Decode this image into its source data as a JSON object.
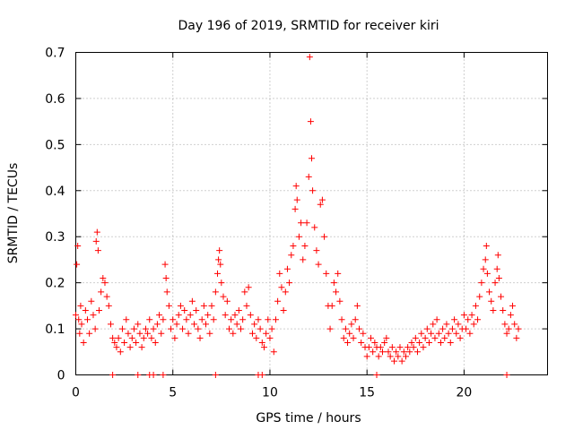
{
  "chart_data": {
    "type": "scatter",
    "title": "Day 196 of 2019, SRMTID for receiver kiri",
    "xlabel": "GPS time / hours",
    "ylabel": "SRMTID / TECUs",
    "xlim": [
      0,
      24.3
    ],
    "ylim": [
      0,
      0.7
    ],
    "xticks": [
      0,
      5,
      10,
      15,
      20
    ],
    "yticks": [
      0,
      0.1,
      0.2,
      0.3,
      0.4,
      0.5,
      0.6,
      0.7
    ],
    "ytick_labels": [
      "0",
      "0.1",
      "0.2",
      "0.3",
      "0.4",
      "0.5",
      "0.6",
      "0.7"
    ],
    "grid": true,
    "marker": "+",
    "color": "#ff0000",
    "series": [
      {
        "name": "SRMTID",
        "points": [
          [
            0.0,
            0.13
          ],
          [
            0.05,
            0.24
          ],
          [
            0.1,
            0.28
          ],
          [
            0.15,
            0.12
          ],
          [
            0.2,
            0.09
          ],
          [
            0.25,
            0.15
          ],
          [
            0.3,
            0.11
          ],
          [
            0.4,
            0.07
          ],
          [
            0.5,
            0.14
          ],
          [
            0.6,
            0.12
          ],
          [
            0.7,
            0.09
          ],
          [
            0.8,
            0.16
          ],
          [
            0.9,
            0.13
          ],
          [
            1.0,
            0.1
          ],
          [
            1.05,
            0.29
          ],
          [
            1.1,
            0.31
          ],
          [
            1.15,
            0.27
          ],
          [
            1.2,
            0.14
          ],
          [
            1.3,
            0.18
          ],
          [
            1.4,
            0.21
          ],
          [
            1.5,
            0.2
          ],
          [
            1.6,
            0.17
          ],
          [
            1.7,
            0.15
          ],
          [
            1.8,
            0.11
          ],
          [
            1.9,
            0.08
          ],
          [
            2.0,
            0.07
          ],
          [
            2.1,
            0.06
          ],
          [
            2.2,
            0.08
          ],
          [
            2.3,
            0.05
          ],
          [
            2.4,
            0.1
          ],
          [
            2.5,
            0.07
          ],
          [
            2.6,
            0.12
          ],
          [
            2.7,
            0.09
          ],
          [
            2.8,
            0.06
          ],
          [
            2.9,
            0.08
          ],
          [
            3.0,
            0.1
          ],
          [
            3.1,
            0.07
          ],
          [
            3.2,
            0.11
          ],
          [
            3.3,
            0.09
          ],
          [
            3.4,
            0.06
          ],
          [
            3.5,
            0.08
          ],
          [
            3.6,
            0.1
          ],
          [
            3.7,
            0.09
          ],
          [
            3.8,
            0.12
          ],
          [
            3.9,
            0.08
          ],
          [
            4.0,
            0.1
          ],
          [
            4.1,
            0.07
          ],
          [
            4.2,
            0.11
          ],
          [
            4.3,
            0.13
          ],
          [
            4.4,
            0.09
          ],
          [
            4.5,
            0.12
          ],
          [
            4.6,
            0.24
          ],
          [
            4.65,
            0.21
          ],
          [
            4.7,
            0.18
          ],
          [
            4.8,
            0.15
          ],
          [
            4.9,
            0.1
          ],
          [
            5.0,
            0.12
          ],
          [
            5.1,
            0.08
          ],
          [
            5.2,
            0.11
          ],
          [
            5.3,
            0.13
          ],
          [
            5.4,
            0.15
          ],
          [
            5.5,
            0.1
          ],
          [
            5.6,
            0.14
          ],
          [
            5.7,
            0.12
          ],
          [
            5.8,
            0.09
          ],
          [
            5.9,
            0.13
          ],
          [
            6.0,
            0.16
          ],
          [
            6.1,
            0.11
          ],
          [
            6.2,
            0.14
          ],
          [
            6.3,
            0.1
          ],
          [
            6.4,
            0.08
          ],
          [
            6.5,
            0.12
          ],
          [
            6.6,
            0.15
          ],
          [
            6.7,
            0.11
          ],
          [
            6.8,
            0.13
          ],
          [
            6.9,
            0.09
          ],
          [
            7.0,
            0.15
          ],
          [
            7.1,
            0.12
          ],
          [
            7.2,
            0.18
          ],
          [
            7.3,
            0.22
          ],
          [
            7.35,
            0.25
          ],
          [
            7.4,
            0.27
          ],
          [
            7.45,
            0.24
          ],
          [
            7.5,
            0.2
          ],
          [
            7.6,
            0.17
          ],
          [
            7.7,
            0.13
          ],
          [
            7.8,
            0.16
          ],
          [
            7.9,
            0.1
          ],
          [
            8.0,
            0.12
          ],
          [
            8.1,
            0.09
          ],
          [
            8.2,
            0.13
          ],
          [
            8.3,
            0.11
          ],
          [
            8.4,
            0.14
          ],
          [
            8.5,
            0.1
          ],
          [
            8.6,
            0.12
          ],
          [
            8.7,
            0.18
          ],
          [
            8.8,
            0.15
          ],
          [
            8.9,
            0.19
          ],
          [
            9.0,
            0.13
          ],
          [
            9.1,
            0.09
          ],
          [
            9.2,
            0.11
          ],
          [
            9.3,
            0.08
          ],
          [
            9.4,
            0.12
          ],
          [
            9.5,
            0.1
          ],
          [
            9.6,
            0.07
          ],
          [
            9.7,
            0.06
          ],
          [
            9.8,
            0.09
          ],
          [
            9.9,
            0.12
          ],
          [
            10.0,
            0.08
          ],
          [
            10.1,
            0.1
          ],
          [
            10.2,
            0.05
          ],
          [
            10.3,
            0.12
          ],
          [
            10.4,
            0.16
          ],
          [
            10.5,
            0.22
          ],
          [
            10.6,
            0.19
          ],
          [
            10.7,
            0.14
          ],
          [
            10.8,
            0.18
          ],
          [
            10.9,
            0.23
          ],
          [
            11.0,
            0.2
          ],
          [
            11.1,
            0.26
          ],
          [
            11.2,
            0.28
          ],
          [
            11.3,
            0.36
          ],
          [
            11.35,
            0.41
          ],
          [
            11.4,
            0.38
          ],
          [
            11.5,
            0.3
          ],
          [
            11.6,
            0.33
          ],
          [
            11.7,
            0.25
          ],
          [
            11.8,
            0.28
          ],
          [
            11.9,
            0.33
          ],
          [
            12.0,
            0.43
          ],
          [
            12.05,
            0.69
          ],
          [
            12.1,
            0.55
          ],
          [
            12.15,
            0.47
          ],
          [
            12.2,
            0.4
          ],
          [
            12.3,
            0.32
          ],
          [
            12.4,
            0.27
          ],
          [
            12.5,
            0.24
          ],
          [
            12.6,
            0.37
          ],
          [
            12.7,
            0.38
          ],
          [
            12.8,
            0.3
          ],
          [
            12.9,
            0.22
          ],
          [
            13.0,
            0.15
          ],
          [
            13.1,
            0.1
          ],
          [
            13.2,
            0.15
          ],
          [
            13.3,
            0.2
          ],
          [
            13.4,
            0.18
          ],
          [
            13.5,
            0.22
          ],
          [
            13.6,
            0.16
          ],
          [
            13.7,
            0.12
          ],
          [
            13.8,
            0.08
          ],
          [
            13.9,
            0.1
          ],
          [
            14.0,
            0.07
          ],
          [
            14.1,
            0.09
          ],
          [
            14.2,
            0.11
          ],
          [
            14.3,
            0.08
          ],
          [
            14.4,
            0.12
          ],
          [
            14.5,
            0.15
          ],
          [
            14.6,
            0.1
          ],
          [
            14.7,
            0.07
          ],
          [
            14.8,
            0.09
          ],
          [
            14.9,
            0.06
          ],
          [
            15.0,
            0.04
          ],
          [
            15.1,
            0.06
          ],
          [
            15.2,
            0.08
          ],
          [
            15.3,
            0.05
          ],
          [
            15.4,
            0.07
          ],
          [
            15.5,
            0.06
          ],
          [
            15.6,
            0.04
          ],
          [
            15.7,
            0.06
          ],
          [
            15.8,
            0.05
          ],
          [
            15.9,
            0.07
          ],
          [
            16.0,
            0.08
          ],
          [
            16.1,
            0.05
          ],
          [
            16.2,
            0.04
          ],
          [
            16.3,
            0.06
          ],
          [
            16.4,
            0.03
          ],
          [
            16.5,
            0.05
          ],
          [
            16.6,
            0.04
          ],
          [
            16.7,
            0.06
          ],
          [
            16.8,
            0.03
          ],
          [
            16.9,
            0.05
          ],
          [
            17.0,
            0.04
          ],
          [
            17.1,
            0.06
          ],
          [
            17.2,
            0.05
          ],
          [
            17.3,
            0.07
          ],
          [
            17.4,
            0.06
          ],
          [
            17.5,
            0.08
          ],
          [
            17.6,
            0.05
          ],
          [
            17.7,
            0.07
          ],
          [
            17.8,
            0.09
          ],
          [
            17.9,
            0.06
          ],
          [
            18.0,
            0.08
          ],
          [
            18.1,
            0.1
          ],
          [
            18.2,
            0.07
          ],
          [
            18.3,
            0.09
          ],
          [
            18.4,
            0.11
          ],
          [
            18.5,
            0.08
          ],
          [
            18.6,
            0.12
          ],
          [
            18.7,
            0.09
          ],
          [
            18.8,
            0.07
          ],
          [
            18.9,
            0.1
          ],
          [
            19.0,
            0.08
          ],
          [
            19.1,
            0.11
          ],
          [
            19.2,
            0.09
          ],
          [
            19.3,
            0.07
          ],
          [
            19.4,
            0.1
          ],
          [
            19.5,
            0.12
          ],
          [
            19.6,
            0.09
          ],
          [
            19.7,
            0.11
          ],
          [
            19.8,
            0.08
          ],
          [
            19.9,
            0.1
          ],
          [
            20.0,
            0.13
          ],
          [
            20.1,
            0.1
          ],
          [
            20.2,
            0.12
          ],
          [
            20.3,
            0.09
          ],
          [
            20.4,
            0.13
          ],
          [
            20.5,
            0.11
          ],
          [
            20.6,
            0.15
          ],
          [
            20.7,
            0.12
          ],
          [
            20.8,
            0.17
          ],
          [
            20.9,
            0.2
          ],
          [
            21.0,
            0.23
          ],
          [
            21.1,
            0.25
          ],
          [
            21.15,
            0.28
          ],
          [
            21.2,
            0.22
          ],
          [
            21.3,
            0.18
          ],
          [
            21.4,
            0.16
          ],
          [
            21.5,
            0.14
          ],
          [
            21.6,
            0.2
          ],
          [
            21.7,
            0.23
          ],
          [
            21.75,
            0.26
          ],
          [
            21.8,
            0.21
          ],
          [
            21.9,
            0.17
          ],
          [
            22.0,
            0.14
          ],
          [
            22.1,
            0.11
          ],
          [
            22.2,
            0.09
          ],
          [
            22.3,
            0.1
          ],
          [
            22.4,
            0.13
          ],
          [
            22.5,
            0.15
          ],
          [
            22.6,
            0.11
          ],
          [
            22.7,
            0.08
          ],
          [
            22.8,
            0.1
          ],
          [
            1.9,
            0.0
          ],
          [
            3.2,
            0.0
          ],
          [
            3.8,
            0.0
          ],
          [
            4.0,
            0.0
          ],
          [
            4.5,
            0.0
          ],
          [
            7.2,
            0.0
          ],
          [
            9.4,
            0.0
          ],
          [
            9.6,
            0.0
          ],
          [
            15.5,
            0.0
          ],
          [
            22.2,
            0.0
          ]
        ]
      }
    ]
  }
}
